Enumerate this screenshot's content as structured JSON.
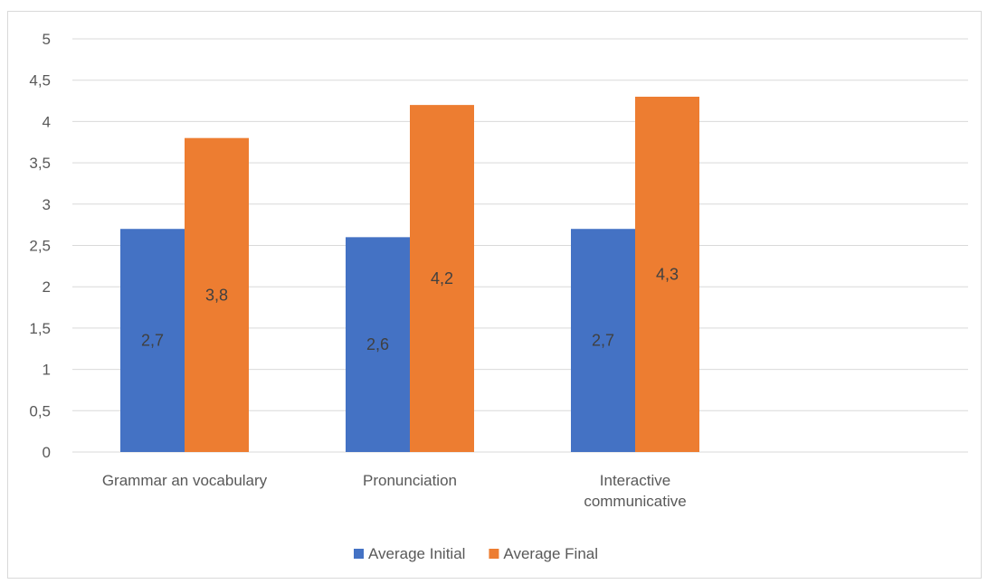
{
  "chart_data": {
    "type": "bar",
    "title": "",
    "xlabel": "",
    "ylabel": "",
    "categories": [
      [
        "Grammar an vocabulary"
      ],
      [
        "Pronunciation"
      ],
      [
        "Interactive",
        "communicative"
      ]
    ],
    "series": [
      {
        "name": "Average Initial",
        "color": "#4472C4",
        "values": [
          2.7,
          2.6,
          2.7
        ],
        "labels": [
          "2,7",
          "2,6",
          "2,7"
        ]
      },
      {
        "name": "Average Final",
        "color": "#ED7D31",
        "values": [
          3.8,
          4.2,
          4.3
        ],
        "labels": [
          "3,8",
          "4,2",
          "4,3"
        ]
      }
    ],
    "ylim": [
      0,
      5
    ],
    "yticks": [
      0,
      0.5,
      1,
      1.5,
      2,
      2.5,
      3,
      3.5,
      4,
      4.5,
      5
    ],
    "ytick_labels": [
      "0",
      "0,5",
      "1",
      "1,5",
      "2",
      "2,5",
      "3",
      "3,5",
      "4",
      "4,5",
      "5"
    ],
    "grid": true,
    "legend_position": "bottom",
    "gridline_color": "#d9d9d9"
  }
}
